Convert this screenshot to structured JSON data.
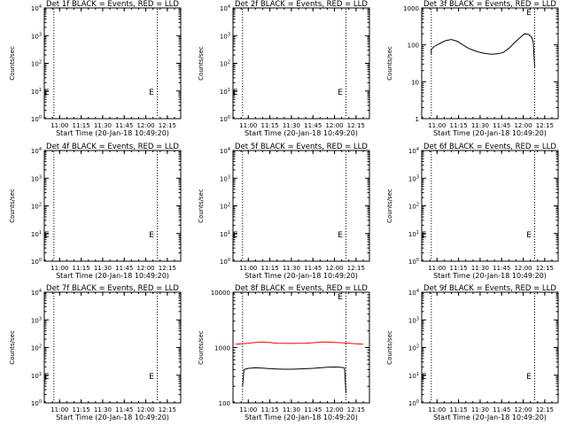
{
  "chart_data": [
    {
      "type": "line",
      "title": "Det 1f BLACK = Events, RED = LLD",
      "xlabel": "Start Time (20-Jan-18 10:49:20)",
      "ylabel": "Counts/sec",
      "x_ticks": [
        "11:00",
        "11:15",
        "11:30",
        "11:45",
        "12:00",
        "12:15"
      ],
      "y_scale": "log",
      "ylim": [
        1,
        10000
      ],
      "y_ticks": [
        {
          "base": "10",
          "exp": "0"
        },
        {
          "base": "10",
          "exp": "1"
        },
        {
          "base": "10",
          "exp": "2"
        },
        {
          "base": "10",
          "exp": "3"
        },
        {
          "base": "10",
          "exp": "4"
        }
      ],
      "markers": [
        {
          "x": "10:51",
          "label": "E"
        },
        {
          "x": "12:04",
          "label": "E"
        }
      ],
      "vlines": [
        "10:56",
        "12:08"
      ],
      "series": []
    },
    {
      "type": "line",
      "title": "Det 2f BLACK = Events, RED = LLD",
      "xlabel": "Start Time (20-Jan-18 10:49:20)",
      "ylabel": "Counts/sec",
      "x_ticks": [
        "11:00",
        "11:15",
        "11:30",
        "11:45",
        "12:00",
        "12:15"
      ],
      "y_scale": "log",
      "ylim": [
        1,
        10000
      ],
      "y_ticks": [
        {
          "base": "10",
          "exp": "0"
        },
        {
          "base": "10",
          "exp": "1"
        },
        {
          "base": "10",
          "exp": "2"
        },
        {
          "base": "10",
          "exp": "3"
        },
        {
          "base": "10",
          "exp": "4"
        }
      ],
      "markers": [
        {
          "x": "10:51",
          "label": "E"
        },
        {
          "x": "12:04",
          "label": "E"
        }
      ],
      "vlines": [
        "10:56",
        "12:08"
      ],
      "series": []
    },
    {
      "type": "line",
      "title": "Det 3f BLACK = Events, RED = LLD",
      "xlabel": "Start Time (20-Jan-18 10:49:20)",
      "ylabel": "Counts/sec",
      "x_ticks": [
        "11:00",
        "11:15",
        "11:30",
        "11:45",
        "12:00",
        "12:15"
      ],
      "y_scale": "log",
      "ylim": [
        1,
        1000
      ],
      "y_ticks": [
        {
          "base": "1",
          "exp": ""
        },
        {
          "base": "10",
          "exp": ""
        },
        {
          "base": "100",
          "exp": ""
        },
        {
          "base": "1000",
          "exp": ""
        }
      ],
      "markers": [
        {
          "x": "12:04",
          "label": "E"
        }
      ],
      "vlines": [
        "10:56",
        "12:08"
      ],
      "series": [
        {
          "color": "#000000",
          "points": [
            [
              "10:56",
              55
            ],
            [
              "10:56",
              75
            ],
            [
              "10:58",
              90
            ],
            [
              "11:02",
              110
            ],
            [
              "11:06",
              130
            ],
            [
              "11:10",
              140
            ],
            [
              "11:14",
              125
            ],
            [
              "11:18",
              100
            ],
            [
              "11:22",
              80
            ],
            [
              "11:26",
              70
            ],
            [
              "11:30",
              62
            ],
            [
              "11:34",
              58
            ],
            [
              "11:38",
              56
            ],
            [
              "11:42",
              57
            ],
            [
              "11:46",
              62
            ],
            [
              "11:50",
              80
            ],
            [
              "11:54",
              115
            ],
            [
              "11:58",
              160
            ],
            [
              "12:01",
              200
            ],
            [
              "12:04",
              190
            ],
            [
              "12:06",
              160
            ],
            [
              "12:07",
              120
            ],
            [
              "12:08",
              25
            ]
          ]
        }
      ]
    },
    {
      "type": "line",
      "title": "Det 4f BLACK = Events, RED = LLD",
      "xlabel": "Start Time (20-Jan-18 10:49:20)",
      "ylabel": "Counts/sec",
      "x_ticks": [
        "11:00",
        "11:15",
        "11:30",
        "11:45",
        "12:00",
        "12:15"
      ],
      "y_scale": "log",
      "ylim": [
        1,
        10000
      ],
      "y_ticks": [
        {
          "base": "10",
          "exp": "0"
        },
        {
          "base": "10",
          "exp": "1"
        },
        {
          "base": "10",
          "exp": "2"
        },
        {
          "base": "10",
          "exp": "3"
        },
        {
          "base": "10",
          "exp": "4"
        }
      ],
      "markers": [
        {
          "x": "10:51",
          "label": "E"
        },
        {
          "x": "12:04",
          "label": "E"
        }
      ],
      "vlines": [
        "10:56",
        "12:08"
      ],
      "series": []
    },
    {
      "type": "line",
      "title": "Det 5f BLACK = Events, RED = LLD",
      "xlabel": "Start Time (20-Jan-18 10:49:20)",
      "ylabel": "Counts/sec",
      "x_ticks": [
        "11:00",
        "11:15",
        "11:30",
        "11:45",
        "12:00",
        "12:15"
      ],
      "y_scale": "log",
      "ylim": [
        1,
        10000
      ],
      "y_ticks": [
        {
          "base": "10",
          "exp": "0"
        },
        {
          "base": "10",
          "exp": "1"
        },
        {
          "base": "10",
          "exp": "2"
        },
        {
          "base": "10",
          "exp": "3"
        },
        {
          "base": "10",
          "exp": "4"
        }
      ],
      "markers": [
        {
          "x": "10:51",
          "label": "E"
        },
        {
          "x": "12:04",
          "label": "E"
        }
      ],
      "vlines": [
        "10:56",
        "12:08"
      ],
      "series": []
    },
    {
      "type": "line",
      "title": "Det 6f BLACK = Events, RED = LLD",
      "xlabel": "Start Time (20-Jan-18 10:49:20)",
      "ylabel": "Counts/sec",
      "x_ticks": [
        "11:00",
        "11:15",
        "11:30",
        "11:45",
        "12:00",
        "12:15"
      ],
      "y_scale": "log",
      "ylim": [
        1,
        10000
      ],
      "y_ticks": [
        {
          "base": "10",
          "exp": "0"
        },
        {
          "base": "10",
          "exp": "1"
        },
        {
          "base": "10",
          "exp": "2"
        },
        {
          "base": "10",
          "exp": "3"
        },
        {
          "base": "10",
          "exp": "4"
        }
      ],
      "markers": [
        {
          "x": "10:51",
          "label": "E"
        },
        {
          "x": "12:04",
          "label": "E"
        }
      ],
      "vlines": [
        "10:56",
        "12:08"
      ],
      "series": []
    },
    {
      "type": "line",
      "title": "Det 7f BLACK = Events, RED = LLD",
      "xlabel": "Start Time (20-Jan-18 10:49:20)",
      "ylabel": "Counts/sec",
      "x_ticks": [
        "11:00",
        "11:15",
        "11:30",
        "11:45",
        "12:00",
        "12:15"
      ],
      "y_scale": "log",
      "ylim": [
        1,
        10000
      ],
      "y_ticks": [
        {
          "base": "10",
          "exp": "0"
        },
        {
          "base": "10",
          "exp": "1"
        },
        {
          "base": "10",
          "exp": "2"
        },
        {
          "base": "10",
          "exp": "3"
        },
        {
          "base": "10",
          "exp": "4"
        }
      ],
      "markers": [
        {
          "x": "10:51",
          "label": "E"
        },
        {
          "x": "12:04",
          "label": "E"
        }
      ],
      "vlines": [
        "10:56",
        "12:08"
      ],
      "series": []
    },
    {
      "type": "line",
      "title": "Det 8f BLACK = Events, RED = LLD",
      "xlabel": "Start Time (20-Jan-18 10:49:20)",
      "ylabel": "Counts/sec",
      "x_ticks": [
        "11:00",
        "11:15",
        "11:30",
        "11:45",
        "12:00",
        "12:15"
      ],
      "y_scale": "log",
      "ylim": [
        100,
        10000
      ],
      "y_ticks": [
        {
          "base": "100",
          "exp": ""
        },
        {
          "base": "1000",
          "exp": ""
        },
        {
          "base": "10000",
          "exp": ""
        }
      ],
      "markers": [
        {
          "x": "12:04",
          "label": "E"
        }
      ],
      "vlines": [
        "10:56",
        "12:08"
      ],
      "series": [
        {
          "color": "#ff0000",
          "points": [
            [
              "10:51",
              1150
            ],
            [
              "10:56",
              1170
            ],
            [
              "11:00",
              1200
            ],
            [
              "11:05",
              1240
            ],
            [
              "11:10",
              1260
            ],
            [
              "11:15",
              1230
            ],
            [
              "11:20",
              1200
            ],
            [
              "11:25",
              1190
            ],
            [
              "11:30",
              1185
            ],
            [
              "11:35",
              1190
            ],
            [
              "11:40",
              1200
            ],
            [
              "11:45",
              1220
            ],
            [
              "11:50",
              1250
            ],
            [
              "11:55",
              1260
            ],
            [
              "12:00",
              1240
            ],
            [
              "12:05",
              1220
            ],
            [
              "12:10",
              1200
            ],
            [
              "12:15",
              1170
            ],
            [
              "12:20",
              1150
            ]
          ]
        },
        {
          "color": "#000000",
          "points": [
            [
              "10:56",
              200
            ],
            [
              "10:57",
              400
            ],
            [
              "11:00",
              420
            ],
            [
              "11:05",
              430
            ],
            [
              "11:10",
              425
            ],
            [
              "11:15",
              415
            ],
            [
              "11:20",
              410
            ],
            [
              "11:25",
              405
            ],
            [
              "11:30",
              405
            ],
            [
              "11:35",
              410
            ],
            [
              "11:40",
              415
            ],
            [
              "11:45",
              420
            ],
            [
              "11:50",
              430
            ],
            [
              "11:55",
              440
            ],
            [
              "12:00",
              445
            ],
            [
              "12:04",
              440
            ],
            [
              "12:07",
              430
            ],
            [
              "12:08",
              150
            ]
          ]
        }
      ]
    },
    {
      "type": "line",
      "title": "Det 9f BLACK = Events, RED = LLD",
      "xlabel": "Start Time (20-Jan-18 10:49:20)",
      "ylabel": "Counts/sec",
      "x_ticks": [
        "11:00",
        "11:15",
        "11:30",
        "11:45",
        "12:00",
        "12:15"
      ],
      "y_scale": "log",
      "ylim": [
        1,
        10000
      ],
      "y_ticks": [
        {
          "base": "10",
          "exp": "0"
        },
        {
          "base": "10",
          "exp": "1"
        },
        {
          "base": "10",
          "exp": "2"
        },
        {
          "base": "10",
          "exp": "3"
        },
        {
          "base": "10",
          "exp": "4"
        }
      ],
      "markers": [
        {
          "x": "10:51",
          "label": "E"
        },
        {
          "x": "12:04",
          "label": "E"
        }
      ],
      "vlines": [
        "10:56",
        "12:08"
      ],
      "series": []
    }
  ]
}
